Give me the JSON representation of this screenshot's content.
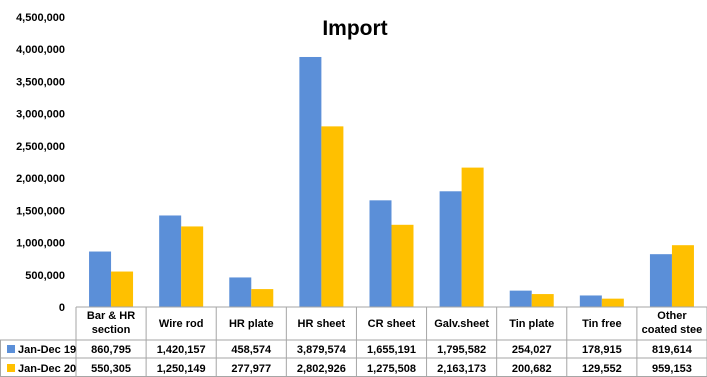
{
  "chart_data": {
    "type": "bar",
    "title": "Import",
    "ylim": [
      0,
      4500000
    ],
    "yticks": [
      "0",
      "500,000",
      "1,000,000",
      "1,500,000",
      "2,000,000",
      "2,500,000",
      "3,000,000",
      "3,500,000",
      "4,000,000",
      "4,500,000"
    ],
    "ytick_values": [
      0,
      500000,
      1000000,
      1500000,
      2000000,
      2500000,
      3000000,
      3500000,
      4000000,
      4500000
    ],
    "grid": false,
    "legend_placement": "data-table",
    "categories": [
      [
        "Bar & HR",
        "section"
      ],
      [
        "Wire rod"
      ],
      [
        "HR plate"
      ],
      [
        "HR sheet"
      ],
      [
        "CR sheet"
      ],
      [
        "Galv.sheet"
      ],
      [
        "Tin plate"
      ],
      [
        "Tin free"
      ],
      [
        "Other",
        "coated stee"
      ]
    ],
    "series": [
      {
        "name": "Jan-Dec 19",
        "color": "#5b8fd8",
        "values": [
          860795,
          1420157,
          458574,
          3879574,
          1655191,
          1795582,
          254027,
          178915,
          819614
        ],
        "labels": [
          "860,795",
          "1,420,157",
          "458,574",
          "3,879,574",
          "1,655,191",
          "1,795,582",
          "254,027",
          "178,915",
          "819,614"
        ]
      },
      {
        "name": "Jan-Dec 20",
        "color": "#ffc000",
        "values": [
          550305,
          1250149,
          277977,
          2802926,
          1275508,
          2163173,
          200682,
          129552,
          959153
        ],
        "labels": [
          "550,305",
          "1,250,149",
          "277,977",
          "2,802,926",
          "1,275,508",
          "2,163,173",
          "200,682",
          "129,552",
          "959,153"
        ]
      }
    ]
  }
}
